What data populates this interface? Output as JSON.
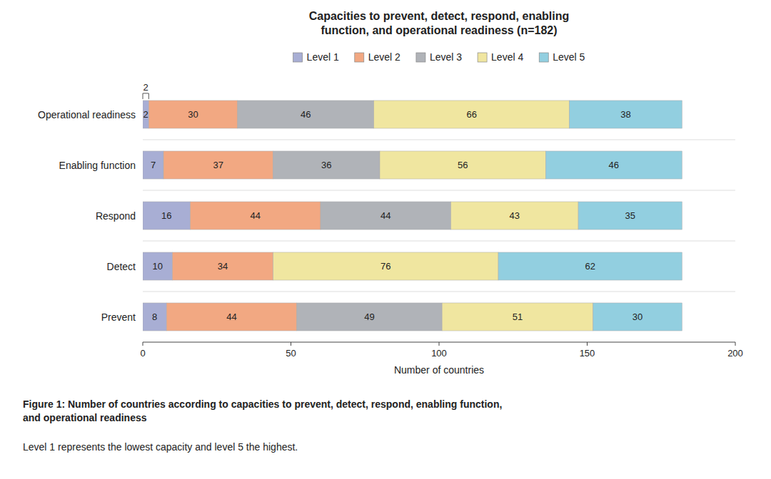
{
  "chart_data": {
    "type": "bar",
    "orientation": "horizontal",
    "stacked": true,
    "data_labels": true,
    "legend": "top",
    "title": "Capacities to prevent, detect, respond, enabling\nfunction, and operational readiness (n=182)",
    "xlabel": "Number of countries",
    "categories": [
      "Prevent",
      "Detect",
      "Respond",
      "Enabling function",
      "Operational readiness"
    ],
    "series": [
      {
        "name": "Level 1",
        "color": "#a8aed4",
        "values": [
          8,
          10,
          16,
          7,
          2
        ]
      },
      {
        "name": "Level 2",
        "color": "#f2a882",
        "values": [
          44,
          34,
          44,
          37,
          30
        ]
      },
      {
        "name": "Level 3",
        "color": "#b0b3b8",
        "values": [
          49,
          0,
          44,
          36,
          46
        ]
      },
      {
        "name": "Level 4",
        "color": "#f0e6a0",
        "values": [
          51,
          76,
          43,
          56,
          66
        ]
      },
      {
        "name": "Level 5",
        "color": "#92cfe0",
        "values": [
          30,
          62,
          35,
          46,
          38
        ]
      }
    ],
    "xlim": [
      0,
      200
    ],
    "xticks": [
      0,
      50,
      100,
      150,
      200
    ],
    "annotations": [
      {
        "text": "2",
        "category": "Operational readiness",
        "x": [
          0,
          2
        ]
      }
    ],
    "caption": "Figure 1: Number of countries according to capacities to prevent, detect, respond, enabling function,\nand operational readiness",
    "note": "Level 1 represents the lowest capacity and level 5 the highest."
  }
}
